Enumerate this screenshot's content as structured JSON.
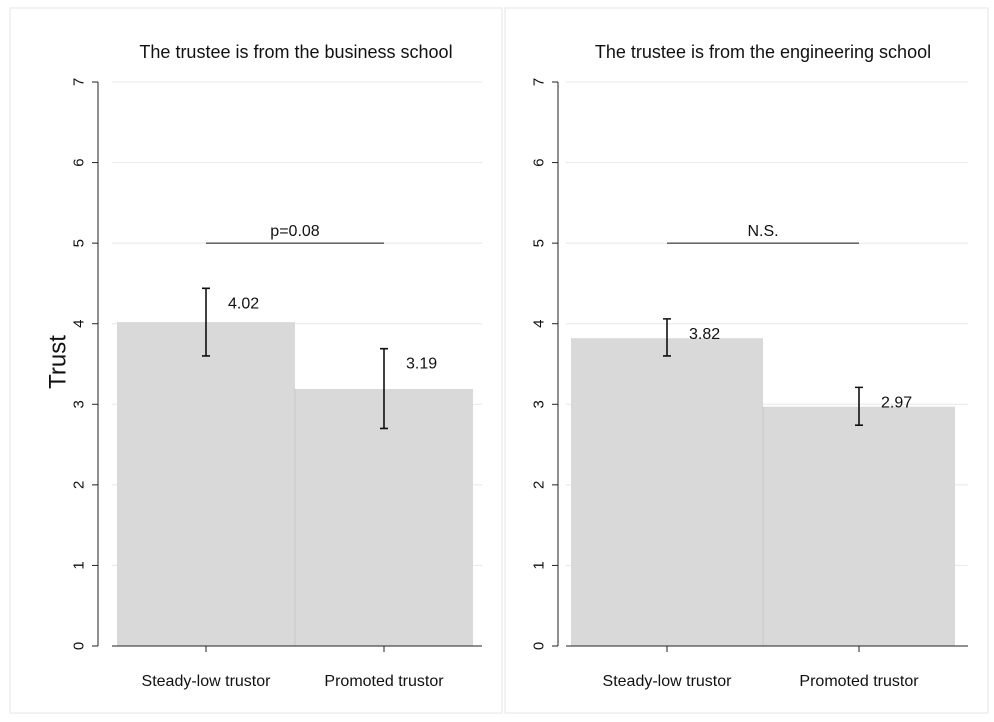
{
  "chart_data": {
    "type": "bar",
    "ylabel": "Trust",
    "ylim": [
      0,
      7
    ],
    "yticks": [
      0,
      1,
      2,
      3,
      4,
      5,
      6,
      7
    ],
    "grid": true,
    "categories": [
      "Steady-low trustor",
      "Promoted trustor"
    ],
    "bar_color": "#d9d9d9",
    "panels": [
      {
        "title": "The trustee is from the business school",
        "values": [
          4.02,
          3.19
        ],
        "value_labels": [
          "4.02",
          "3.19"
        ],
        "ci_low": [
          3.6,
          2.7
        ],
        "ci_high": [
          4.44,
          3.69
        ],
        "significance": {
          "label": "p=0.08",
          "y": 5.0
        }
      },
      {
        "title": "The trustee is from the engineering school",
        "values": [
          3.82,
          2.97
        ],
        "value_labels": [
          "3.82",
          "2.97"
        ],
        "ci_low": [
          3.6,
          2.74
        ],
        "ci_high": [
          4.06,
          3.21
        ],
        "significance": {
          "label": "N.S.",
          "y": 5.0
        }
      }
    ]
  }
}
